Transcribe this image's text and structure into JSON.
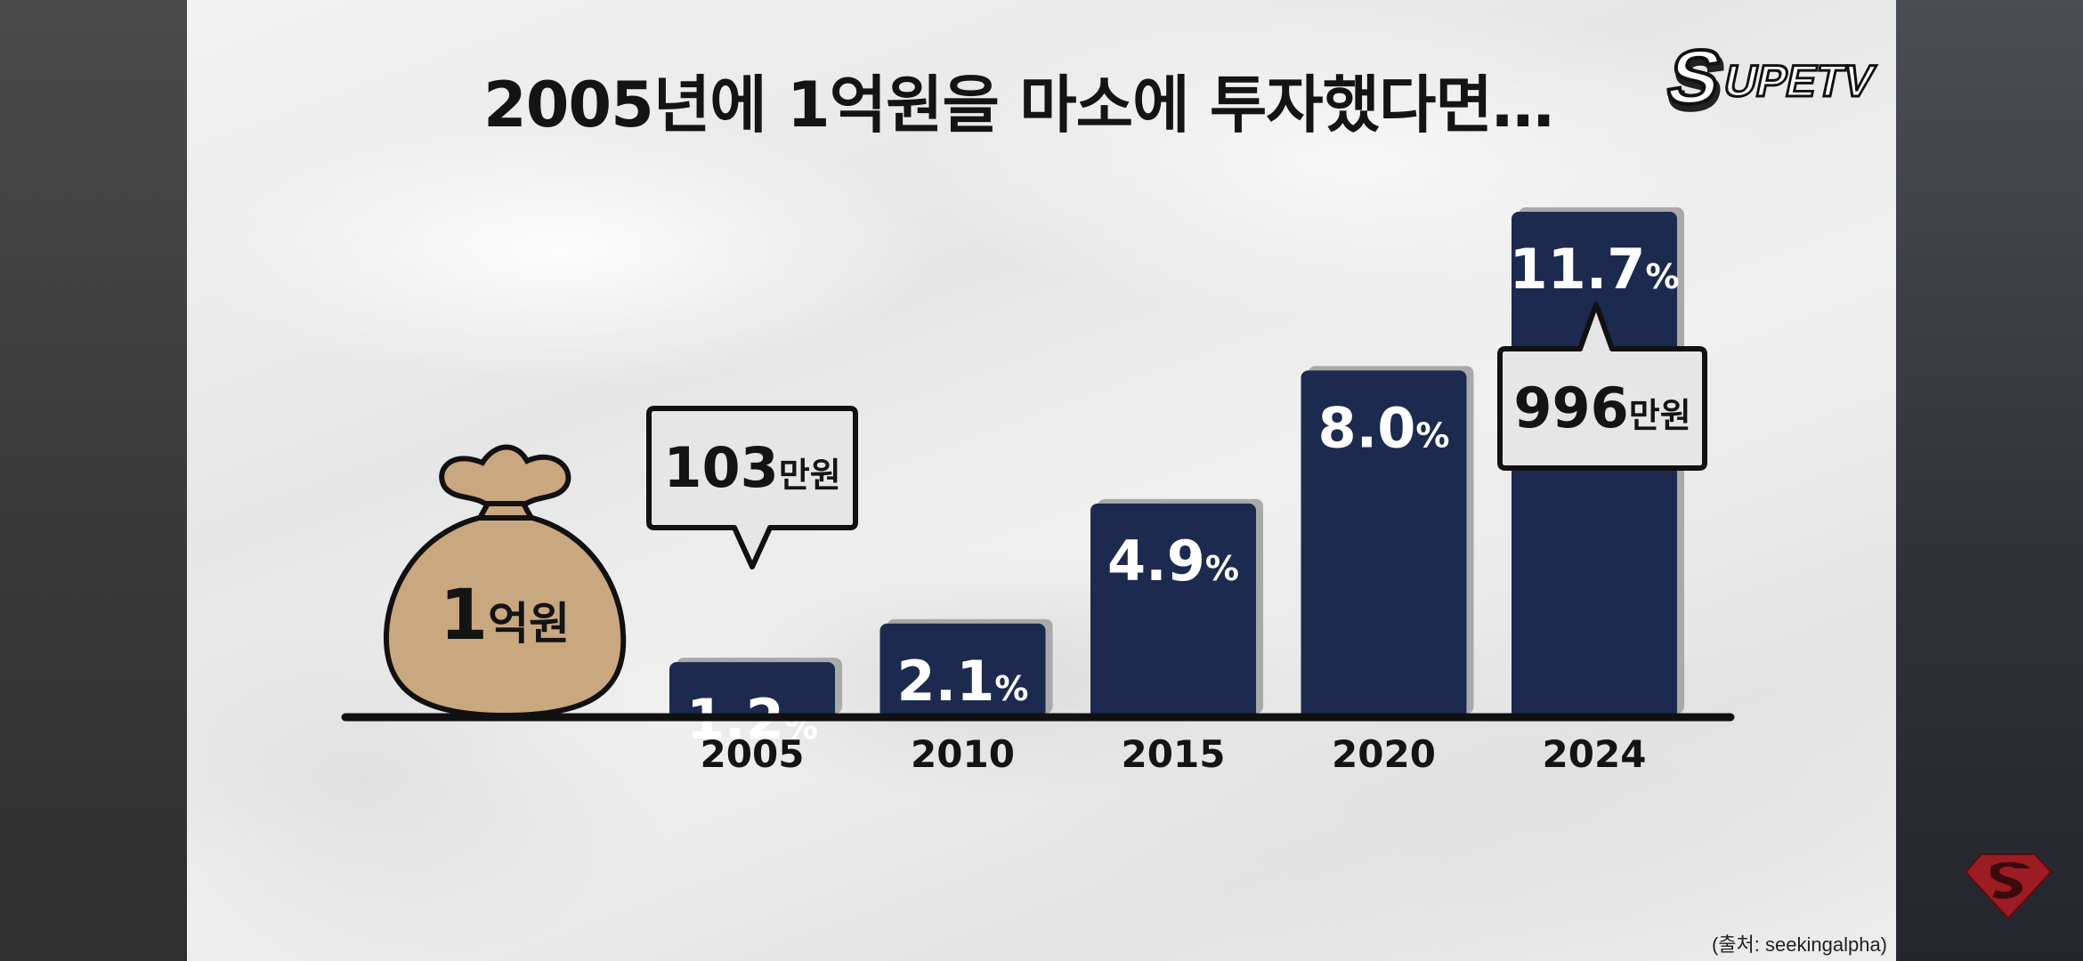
{
  "chart_title": "2005년에 1억원을 마소에 투자했다면…",
  "logo_text": "SUPETV",
  "source_note": "(출처: seekingalpha)",
  "money_bag": {
    "amount": "1",
    "unit": "억원",
    "icon": "money-bag-icon"
  },
  "callouts": [
    {
      "category": "2005",
      "amount": "103",
      "unit": "만원"
    },
    {
      "category": "2024",
      "amount": "996",
      "unit": "만원"
    }
  ],
  "colors": {
    "bar": "#1b2a4e",
    "bar_shadow": "#a9a9a9",
    "money_bag": "#c9a77f",
    "outline": "#111111",
    "callout_fill": "#e6e6e6",
    "title": "#141414",
    "emblem_red": "#9b1c22"
  },
  "chart_data": {
    "type": "bar",
    "categories": [
      "2005",
      "2010",
      "2015",
      "2020",
      "2024"
    ],
    "values": [
      1.2,
      2.1,
      4.9,
      8.0,
      11.7
    ],
    "value_labels": [
      "1.2",
      "2.1",
      "4.9",
      "8.0",
      "11.7"
    ],
    "value_suffix": "%",
    "title": "2005년에 1억원을 마소에 투자했다면…",
    "xlabel": "",
    "ylabel": "",
    "ylim": [
      0,
      12.5
    ],
    "grid": false,
    "legend": "none"
  }
}
